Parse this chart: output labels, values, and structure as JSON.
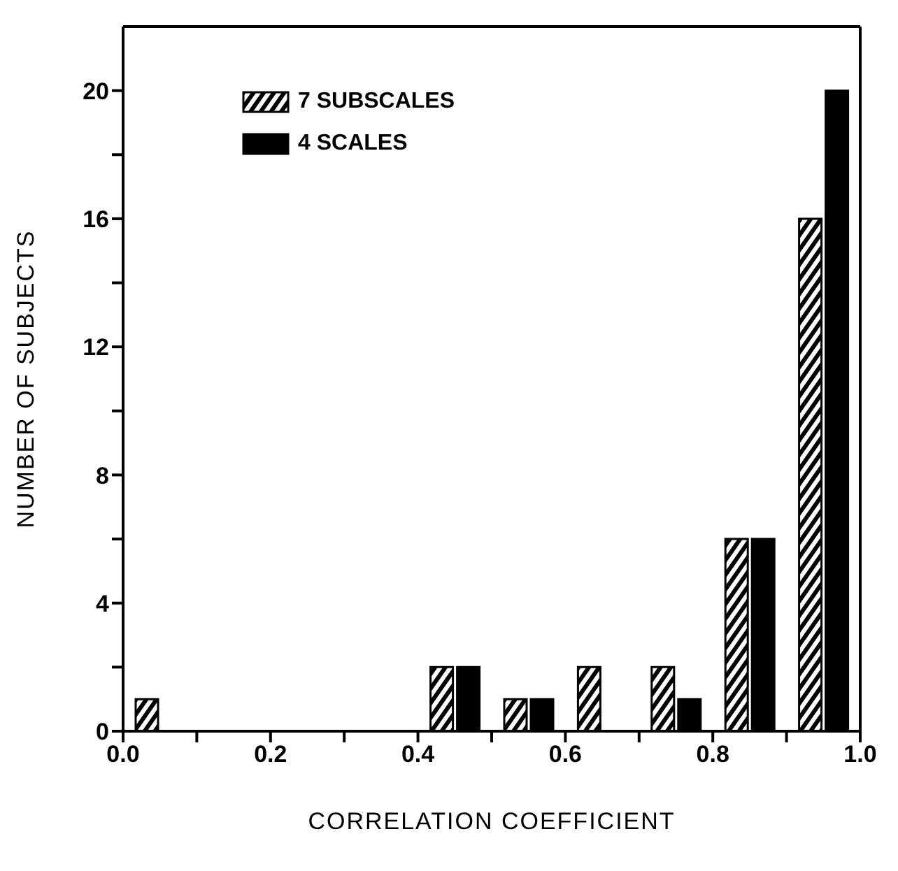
{
  "chart_data": {
    "type": "histogram",
    "xlabel": "CORRELATION COEFFICIENT",
    "ylabel": "NUMBER OF SUBJECTS",
    "bins": [
      0,
      0.1,
      0.2,
      0.3,
      0.4,
      0.5,
      0.6,
      0.7,
      0.8,
      0.9,
      1.0
    ],
    "series": [
      {
        "name": "7 SUBSCALES",
        "color": "#000000",
        "values": [
          1,
          0,
          0,
          0,
          2,
          1,
          2,
          2,
          6,
          16
        ]
      },
      {
        "name": "4 SCALES",
        "color": "#000000",
        "values": [
          0,
          0,
          0,
          0,
          2,
          1,
          0,
          1,
          6,
          20
        ]
      }
    ],
    "xlim": [
      0,
      1
    ],
    "xticks": [
      {
        "value": 0,
        "label": "0.0"
      },
      {
        "value": 0.1,
        "label": null
      },
      {
        "value": 0.2,
        "label": "0.2"
      },
      {
        "value": 0.3,
        "label": null
      },
      {
        "value": 0.4,
        "label": "0.4"
      },
      {
        "value": 0.5,
        "label": null
      },
      {
        "value": 0.6,
        "label": "0.6"
      },
      {
        "value": 0.7,
        "label": null
      },
      {
        "value": 0.8,
        "label": "0.8"
      },
      {
        "value": 0.9,
        "label": null
      },
      {
        "value": 1,
        "label": "1.0"
      }
    ],
    "ylim": [
      0,
      22
    ],
    "yticks": [
      0,
      {
        "value": 2,
        "label": null
      },
      4,
      {
        "value": 6,
        "label": null
      },
      8,
      {
        "value": 10,
        "label": null
      },
      12,
      {
        "value": 14,
        "label": null
      },
      16,
      {
        "value": 18,
        "label": null
      },
      20
    ],
    "grid": false,
    "legend": "top left"
  }
}
